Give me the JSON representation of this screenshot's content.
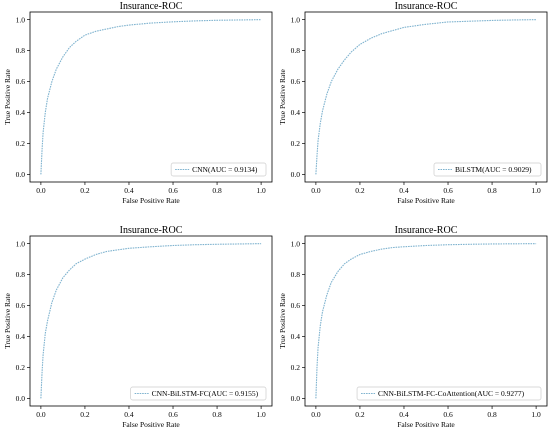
{
  "line_color": "#7fb3cf",
  "chart_data": [
    {
      "type": "line",
      "title": "Insurance-ROC",
      "xlabel": "False Positive Rate",
      "ylabel": "True Positive Rate",
      "xlim": [
        0,
        1
      ],
      "ylim": [
        0,
        1
      ],
      "xticks": [
        "0.0",
        "0.2",
        "0.4",
        "0.6",
        "0.8",
        "1.0"
      ],
      "yticks": [
        "0.0",
        "0.2",
        "0.4",
        "0.6",
        "0.8",
        "1.0"
      ],
      "grid": false,
      "legend_position": "lower right",
      "series": [
        {
          "name": "CNN(AUC = 0.9134)",
          "x": [
            0,
            0.005,
            0.01,
            0.02,
            0.03,
            0.05,
            0.07,
            0.1,
            0.13,
            0.16,
            0.2,
            0.25,
            0.3,
            0.35,
            0.4,
            0.5,
            0.6,
            0.7,
            0.8,
            0.9,
            1.0
          ],
          "y": [
            0,
            0.15,
            0.27,
            0.4,
            0.49,
            0.6,
            0.68,
            0.76,
            0.82,
            0.86,
            0.9,
            0.925,
            0.94,
            0.955,
            0.965,
            0.978,
            0.986,
            0.992,
            0.996,
            0.998,
            1.0
          ]
        }
      ]
    },
    {
      "type": "line",
      "title": "Insurance-ROC",
      "xlabel": "False Positive Rate",
      "ylabel": "True Positive Rate",
      "xlim": [
        0,
        1
      ],
      "ylim": [
        0,
        1
      ],
      "xticks": [
        "0.0",
        "0.2",
        "0.4",
        "0.6",
        "0.8",
        "1.0"
      ],
      "yticks": [
        "0.0",
        "0.2",
        "0.4",
        "0.6",
        "0.8",
        "1.0"
      ],
      "grid": false,
      "legend_position": "lower right",
      "series": [
        {
          "name": "BiLSTM(AUC = 0.9029)",
          "x": [
            0,
            0.005,
            0.01,
            0.02,
            0.03,
            0.05,
            0.07,
            0.1,
            0.13,
            0.16,
            0.2,
            0.25,
            0.3,
            0.35,
            0.4,
            0.5,
            0.6,
            0.7,
            0.8,
            0.9,
            1.0
          ],
          "y": [
            0,
            0.12,
            0.22,
            0.33,
            0.41,
            0.52,
            0.6,
            0.68,
            0.74,
            0.79,
            0.84,
            0.88,
            0.91,
            0.93,
            0.95,
            0.97,
            0.985,
            0.99,
            0.995,
            0.998,
            1.0
          ]
        }
      ]
    },
    {
      "type": "line",
      "title": "Insurance-ROC",
      "xlabel": "False Positive Rate",
      "ylabel": "True Positive Rate",
      "xlim": [
        0,
        1
      ],
      "ylim": [
        0,
        1
      ],
      "xticks": [
        "0.0",
        "0.2",
        "0.4",
        "0.6",
        "0.8",
        "1.0"
      ],
      "yticks": [
        "0.0",
        "0.2",
        "0.4",
        "0.6",
        "0.8",
        "1.0"
      ],
      "grid": false,
      "legend_position": "lower right",
      "series": [
        {
          "name": "CNN-BiLSTM-FC(AUC = 0.9155)",
          "x": [
            0,
            0.005,
            0.01,
            0.02,
            0.03,
            0.05,
            0.07,
            0.1,
            0.13,
            0.16,
            0.2,
            0.25,
            0.3,
            0.35,
            0.4,
            0.5,
            0.6,
            0.7,
            0.8,
            0.9,
            1.0
          ],
          "y": [
            0,
            0.16,
            0.28,
            0.42,
            0.5,
            0.62,
            0.7,
            0.78,
            0.83,
            0.87,
            0.9,
            0.93,
            0.95,
            0.96,
            0.97,
            0.98,
            0.988,
            0.993,
            0.996,
            0.998,
            1.0
          ]
        }
      ]
    },
    {
      "type": "line",
      "title": "Insurance-ROC",
      "xlabel": "False Positive Rate",
      "ylabel": "True Positive Rate",
      "xlim": [
        0,
        1
      ],
      "ylim": [
        0,
        1
      ],
      "xticks": [
        "0.0",
        "0.2",
        "0.4",
        "0.6",
        "0.8",
        "1.0"
      ],
      "yticks": [
        "0.0",
        "0.2",
        "0.4",
        "0.6",
        "0.8",
        "1.0"
      ],
      "grid": false,
      "legend_position": "lower right",
      "series": [
        {
          "name": "CNN-BiLSTM-FC-CoAttention(AUC = 0.9277)",
          "x": [
            0,
            0.005,
            0.01,
            0.02,
            0.03,
            0.05,
            0.07,
            0.1,
            0.13,
            0.16,
            0.2,
            0.25,
            0.3,
            0.35,
            0.4,
            0.5,
            0.6,
            0.7,
            0.8,
            0.9,
            1.0
          ],
          "y": [
            0,
            0.2,
            0.33,
            0.47,
            0.56,
            0.67,
            0.75,
            0.82,
            0.87,
            0.9,
            0.93,
            0.95,
            0.965,
            0.975,
            0.98,
            0.988,
            0.993,
            0.996,
            0.998,
            0.999,
            1.0
          ]
        }
      ]
    }
  ]
}
